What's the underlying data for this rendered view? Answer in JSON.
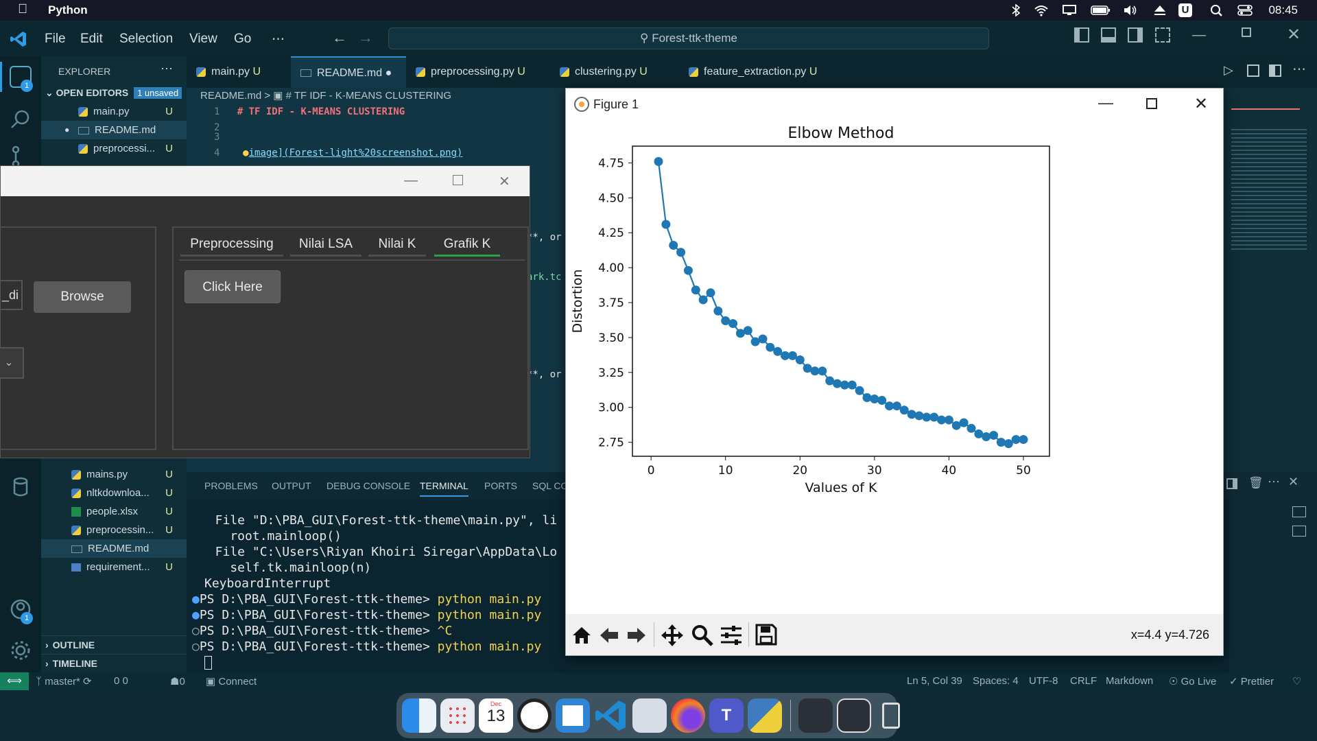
{
  "menubar": {
    "app": "Python",
    "clock": "08:45"
  },
  "vscode": {
    "menus": [
      "File",
      "Edit",
      "Selection",
      "View",
      "Go",
      "⋯"
    ],
    "command_center": "Forest-ttk-theme",
    "tabs": [
      {
        "label": "main.py",
        "badge": "U"
      },
      {
        "label": "README.md",
        "badge": "●"
      },
      {
        "label": "preprocessing.py",
        "badge": "U"
      },
      {
        "label": "clustering.py",
        "badge": "U"
      },
      {
        "label": "feature_extraction.py",
        "badge": "U"
      }
    ],
    "breadcrumb": "README.md > ▣ # TF IDF - K-MEANS CLUSTERING",
    "editor_lines": [
      {
        "n": "1",
        "text": "# TF IDF - K-MEANS CLUSTERING"
      },
      {
        "n": "2",
        "text": ""
      },
      {
        "n": "3",
        "text": ""
      },
      {
        "n": "4",
        "text": "image](Forest-light%20screenshot.png)"
      }
    ],
    "editor_frag1": "**, or",
    "editor_frag2": "ark.tc",
    "editor_frag3": "**, or"
  },
  "sidebar": {
    "title": "EXPLORER",
    "open_editors": "OPEN EDITORS",
    "unsaved": "1 unsaved",
    "open_files": [
      {
        "name": "main.py",
        "badge": "U"
      },
      {
        "name": "README.md",
        "badge": ""
      },
      {
        "name": "preprocessi...",
        "badge": "U"
      }
    ],
    "files": [
      {
        "name": "mains.py",
        "badge": "U"
      },
      {
        "name": "nltkdownloa...",
        "badge": "U"
      },
      {
        "name": "people.xlsx",
        "badge": "U"
      },
      {
        "name": "preprocessin...",
        "badge": "U"
      },
      {
        "name": "README.md",
        "badge": ""
      },
      {
        "name": "requirement...",
        "badge": "U"
      }
    ],
    "outline": "OUTLINE",
    "timeline": "TIMELINE"
  },
  "tk": {
    "entry_fragment": "_di",
    "browse": "Browse",
    "tabs": [
      "Preprocessing",
      "Nilai LSA",
      "Nilai K",
      "Grafik K"
    ],
    "click_here": "Click Here"
  },
  "panel": {
    "tabs": [
      "PROBLEMS",
      "OUTPUT",
      "DEBUG CONSOLE",
      "TERMINAL",
      "PORTS",
      "SQL CO"
    ],
    "terminal_lines": [
      "  File \"D:\\PBA_GUI\\Forest-ttk-theme\\main.py\", li",
      "    root.mainloop()",
      "  File \"C:\\Users\\Riyan Khoiri Siregar\\AppData\\Lo",
      "    self.tk.mainloop(n)",
      "KeyboardInterrupt"
    ],
    "prompts": [
      {
        "prompt": "PS D:\\PBA_GUI\\Forest-ttk-theme> ",
        "cmd": "python main.py"
      },
      {
        "prompt": "PS D:\\PBA_GUI\\Forest-ttk-theme> ",
        "cmd": "python main.py"
      },
      {
        "prompt": "PS D:\\PBA_GUI\\Forest-ttk-theme> ",
        "cmd": "^C"
      },
      {
        "prompt": "PS D:\\PBA_GUI\\Forest-ttk-theme> ",
        "cmd": "python main.py"
      }
    ]
  },
  "statusbar": {
    "branch": "master*",
    "errors": "⑘0 ⚠0",
    "ports": "☗0",
    "connect": "Connect",
    "position": "Ln 5, Col 39",
    "spaces": "Spaces: 4",
    "encoding": "UTF-8",
    "eol": "CRLF",
    "language": "Markdown",
    "golive": "Go Live",
    "prettier": "Prettier"
  },
  "figure": {
    "window_title": "Figure 1",
    "coords": "x=4.4 y=4.726"
  },
  "dock": {
    "calendar_month": "Dec",
    "calendar_day": "13"
  },
  "chart_data": {
    "type": "line",
    "title": "Elbow Method",
    "xlabel": "Values of K",
    "ylabel": "Distortion",
    "xlim": [
      -2.5,
      53.5
    ],
    "ylim": [
      2.65,
      4.87
    ],
    "xticks": [
      0,
      10,
      20,
      30,
      40,
      50
    ],
    "yticks": [
      2.75,
      3.0,
      3.25,
      3.5,
      3.75,
      4.0,
      4.25,
      4.5,
      4.75
    ],
    "ytick_labels": [
      "2.75",
      "3.00",
      "3.25",
      "3.50",
      "3.75",
      "4.00",
      "4.25",
      "4.50",
      "4.75"
    ],
    "color": "#1f77b4",
    "x": [
      1,
      2,
      3,
      4,
      5,
      6,
      7,
      8,
      9,
      10,
      11,
      12,
      13,
      14,
      15,
      16,
      17,
      18,
      19,
      20,
      21,
      22,
      23,
      24,
      25,
      26,
      27,
      28,
      29,
      30,
      31,
      32,
      33,
      34,
      35,
      36,
      37,
      38,
      39,
      40,
      41,
      42,
      43,
      44,
      45,
      46,
      47,
      48,
      49,
      50
    ],
    "y": [
      4.76,
      4.31,
      4.16,
      4.11,
      3.98,
      3.84,
      3.77,
      3.82,
      3.69,
      3.62,
      3.6,
      3.53,
      3.55,
      3.47,
      3.49,
      3.43,
      3.4,
      3.37,
      3.37,
      3.34,
      3.28,
      3.26,
      3.26,
      3.19,
      3.17,
      3.16,
      3.16,
      3.12,
      3.07,
      3.06,
      3.05,
      3.01,
      3.01,
      2.98,
      2.95,
      2.94,
      2.93,
      2.93,
      2.91,
      2.91,
      2.87,
      2.89,
      2.85,
      2.81,
      2.79,
      2.8,
      2.75,
      2.74,
      2.77,
      2.77
    ]
  }
}
